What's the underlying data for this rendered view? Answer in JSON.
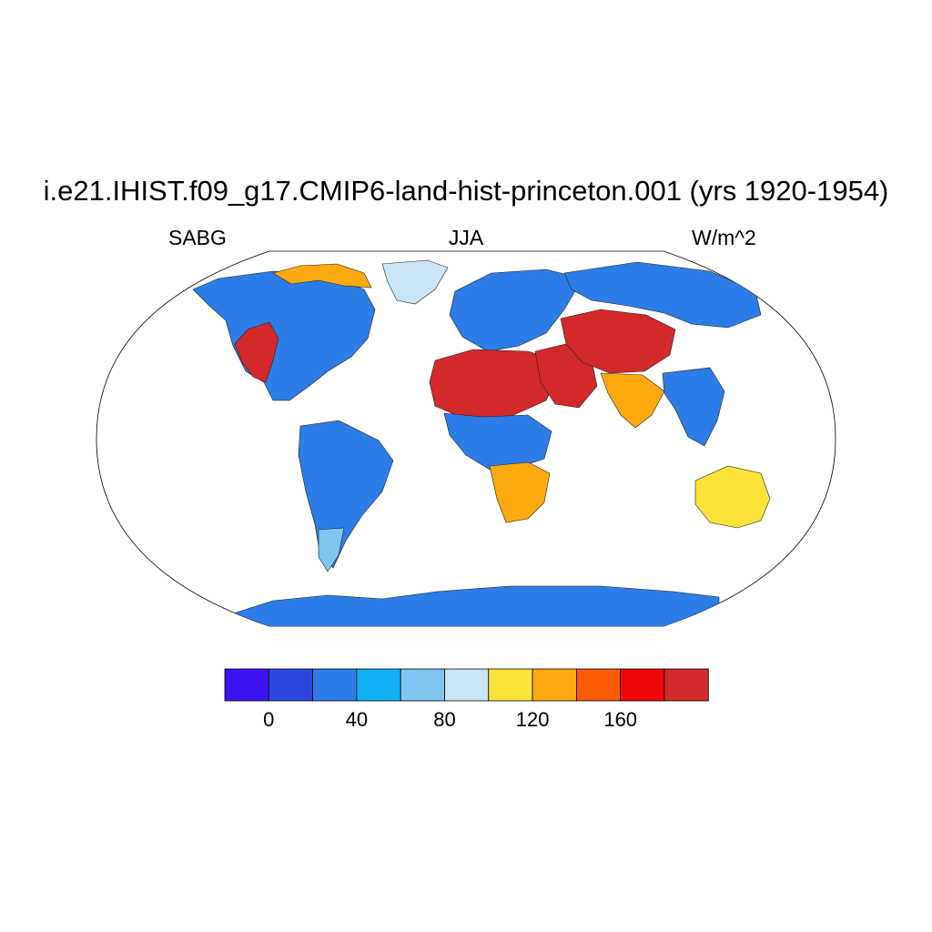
{
  "title": "i.e21.IHIST.f09_g17.CMIP6-land-hist-princeton.001 (yrs 1920-1954)",
  "left_label": "SABG",
  "center_label": "JJA",
  "right_label": "W/m^2",
  "legend": {
    "colors": [
      "#3d12f2",
      "#2b47e0",
      "#2d7de8",
      "#0fb0f5",
      "#7fc6ef",
      "#cbe5f6",
      "#fde23a",
      "#fca90f",
      "#fb5b05",
      "#f00707",
      "#d3292b"
    ],
    "tick_labels": [
      "0",
      "40",
      "80",
      "120",
      "160"
    ],
    "tick_values": [
      0,
      40,
      80,
      120,
      160
    ],
    "level_step": 20,
    "min_level": -20,
    "max_level": 200
  },
  "regions": [
    {
      "name": "north-america",
      "level": 20
    },
    {
      "name": "us-southwest",
      "level": 180
    },
    {
      "name": "canada-arctic",
      "level": 120
    },
    {
      "name": "greenland",
      "level": 80
    },
    {
      "name": "south-america",
      "level": 20
    },
    {
      "name": "patagonia",
      "level": 60
    },
    {
      "name": "europe",
      "level": 20
    },
    {
      "name": "north-africa",
      "level": 200
    },
    {
      "name": "central-africa",
      "level": 20
    },
    {
      "name": "southern-africa",
      "level": 120
    },
    {
      "name": "middle-east",
      "level": 200
    },
    {
      "name": "central-asia",
      "level": 200
    },
    {
      "name": "siberia",
      "level": 20
    },
    {
      "name": "south-asia",
      "level": 120
    },
    {
      "name": "southeast-asia",
      "level": 20
    },
    {
      "name": "australia",
      "level": 100
    },
    {
      "name": "antarctica",
      "level": 20
    }
  ]
}
